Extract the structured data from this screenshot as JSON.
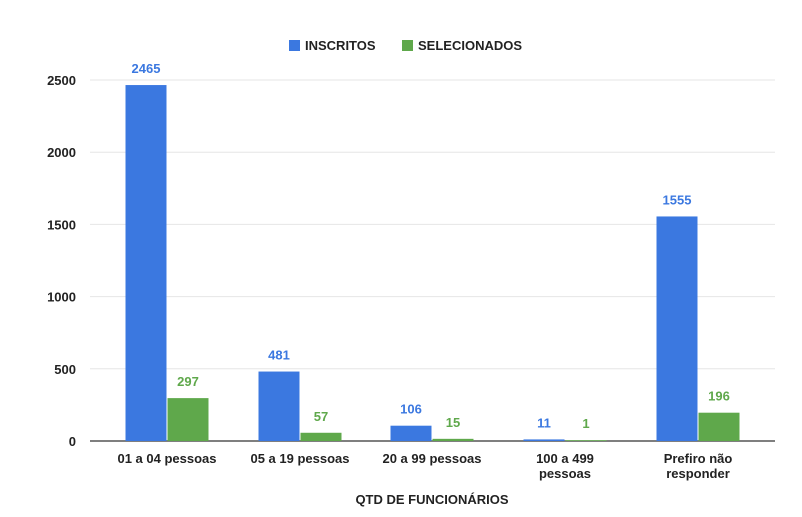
{
  "chart_data": {
    "type": "bar",
    "categories": [
      [
        "01 a 04 pessoas"
      ],
      [
        "05 a 19 pessoas"
      ],
      [
        "20 a 99 pessoas"
      ],
      [
        "100 a 499",
        "pessoas"
      ],
      [
        "Prefiro não",
        "responder"
      ]
    ],
    "series": [
      {
        "name": "INSCRITOS",
        "color": "#3b78e0",
        "label_color": "#3b78e0",
        "values": [
          2465,
          481,
          106,
          11,
          1555
        ]
      },
      {
        "name": "SELECIONADOS",
        "color": "#5fa84b",
        "label_color": "#5fa84b",
        "values": [
          297,
          57,
          15,
          1,
          196
        ]
      }
    ],
    "title": "",
    "xlabel": "QTD DE FUNCIONÁRIOS",
    "ylabel": "",
    "ylim": [
      0,
      2500
    ],
    "yticks": [
      0,
      500,
      1000,
      1500,
      2000,
      2500
    ],
    "legend_position": "top-center",
    "grid": true,
    "show_data_labels": true
  }
}
